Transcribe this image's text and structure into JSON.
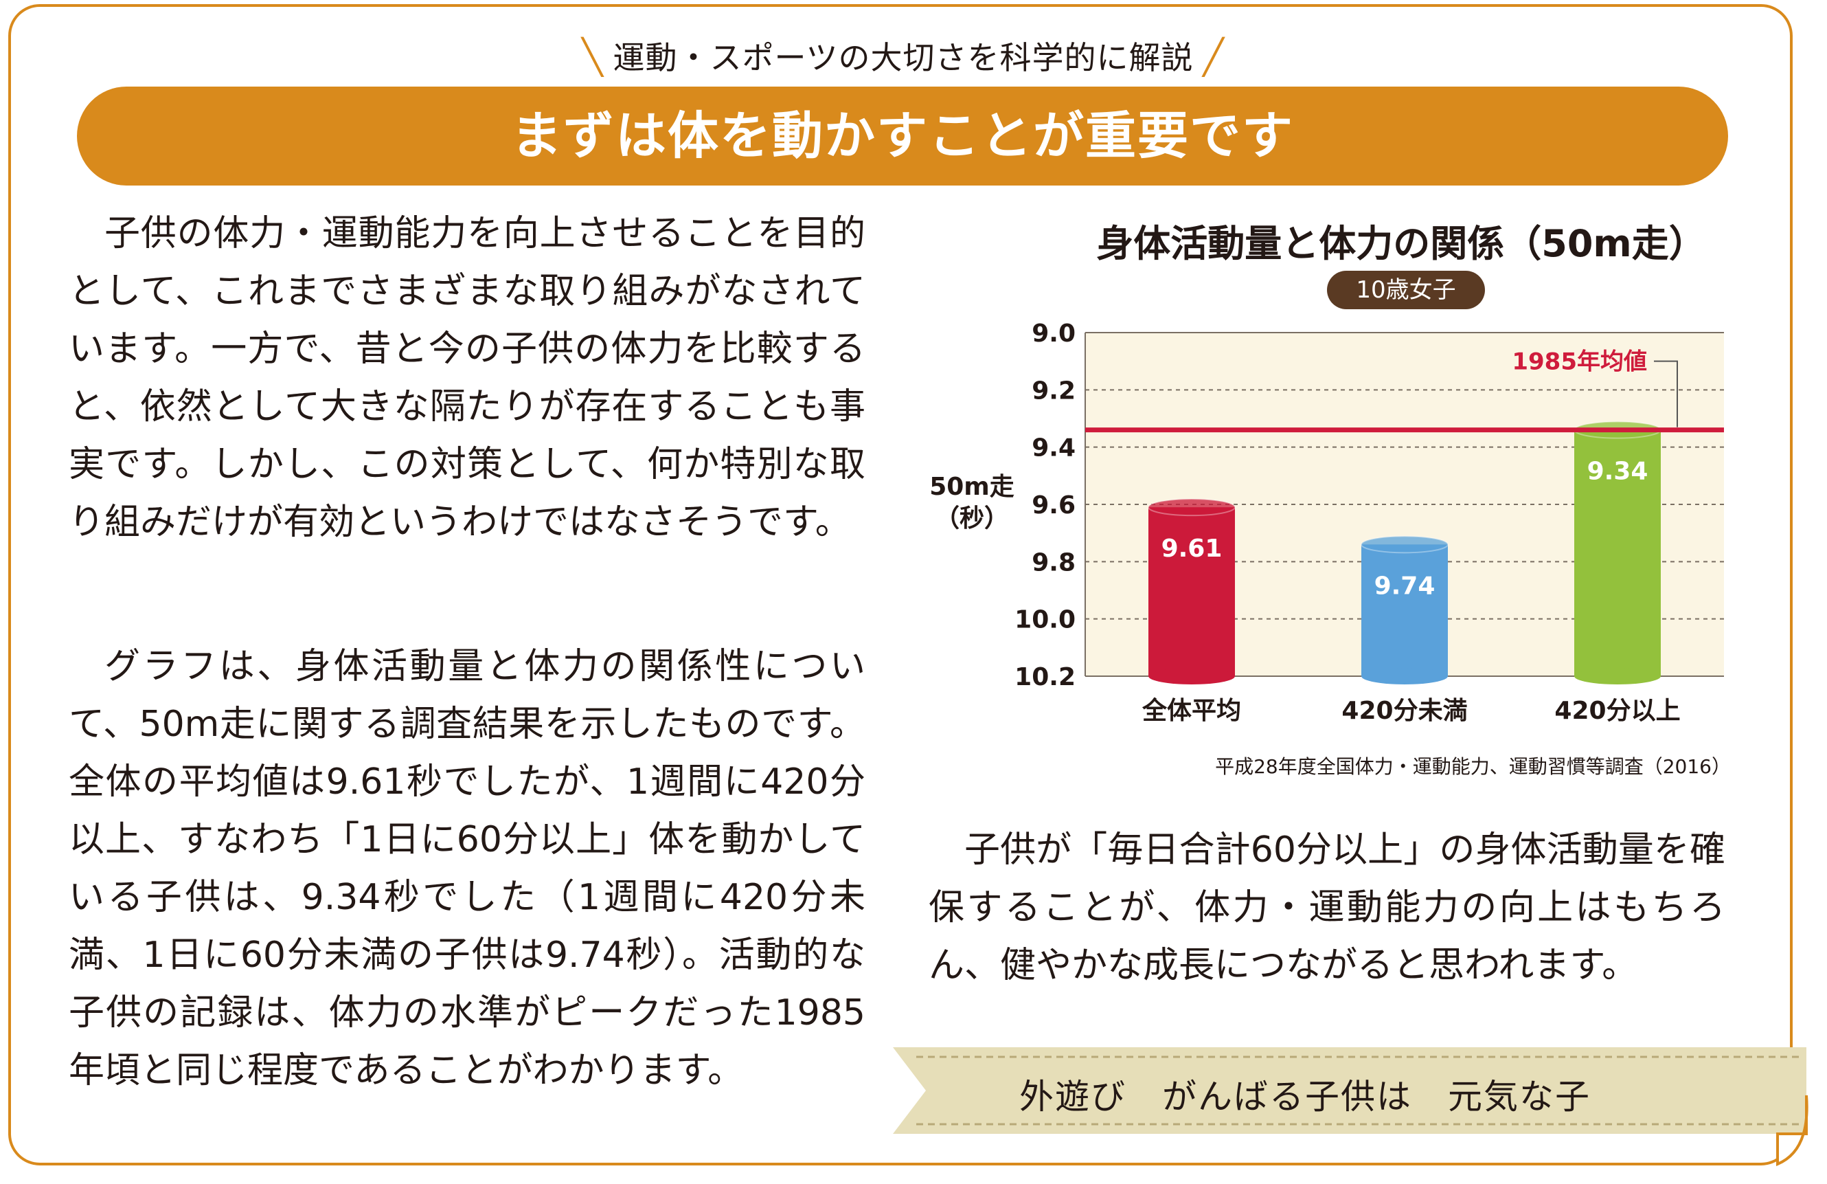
{
  "header": {
    "kicker": "運動・スポーツの大切さを科学的に解説",
    "title": "まずは体を動かすことが重要です"
  },
  "body": {
    "paragraph_1": "子供の体力・運動能力を向上させることを目的として、これまでさまざまな取り組みがなされています。一方で、昔と今の子供の体力を比較すると、依然として大きな隔たりが存在することも事実です。しかし、この対策として、何か特別な取り組みだけが有効というわけではなさそうです。",
    "paragraph_2": "グラフは、身体活動量と体力の関係性について、50m走に関する調査結果を示したものです。全体の平均値は9.61秒でしたが、1週間に420分以上、すなわち「1日に60分以上」体を動かしている子供は、9.34秒でした（1週間に420分未満、1日に60分未満の子供は9.74秒）。活動的な子供の記録は、体力の水準がピークだった1985年頃と同じ程度であることがわかります。",
    "paragraph_3": "子供が「毎日合計60分以上」の身体活動量を確保することが、体力・運動能力の向上はもちろん、健やかな成長につながると思われます。"
  },
  "slogan": "外遊び　がんばる子供は　元気な子",
  "colors": {
    "accent": "#d98a1c",
    "plot_bg": "#fbf5e3",
    "reference_line": "#cf1c3c"
  },
  "chart_data": {
    "type": "bar",
    "title": "身体活動量と体力の関係（50m走）",
    "subtitle": "10歳女子",
    "ylabel": "50m走\n（秒）",
    "ylim": [
      9.0,
      10.2
    ],
    "y_inverted": true,
    "baseline": 10.2,
    "yticks": [
      "9.0",
      "9.2",
      "9.4",
      "9.6",
      "9.8",
      "10.0",
      "10.2"
    ],
    "grid": "horizontal dashed",
    "categories": [
      "全体平均",
      "420分未満",
      "420分以上"
    ],
    "values": [
      9.61,
      9.74,
      9.34
    ],
    "value_labels": [
      "9.61",
      "9.74",
      "9.34"
    ],
    "bar_colors": [
      "#cc1a3a",
      "#5aa1da",
      "#93c13c"
    ],
    "reference_line": {
      "label": "1985年均値",
      "value": 9.34
    },
    "source": "平成28年度全国体力・運動能力、運動習慣等調査（2016）"
  }
}
